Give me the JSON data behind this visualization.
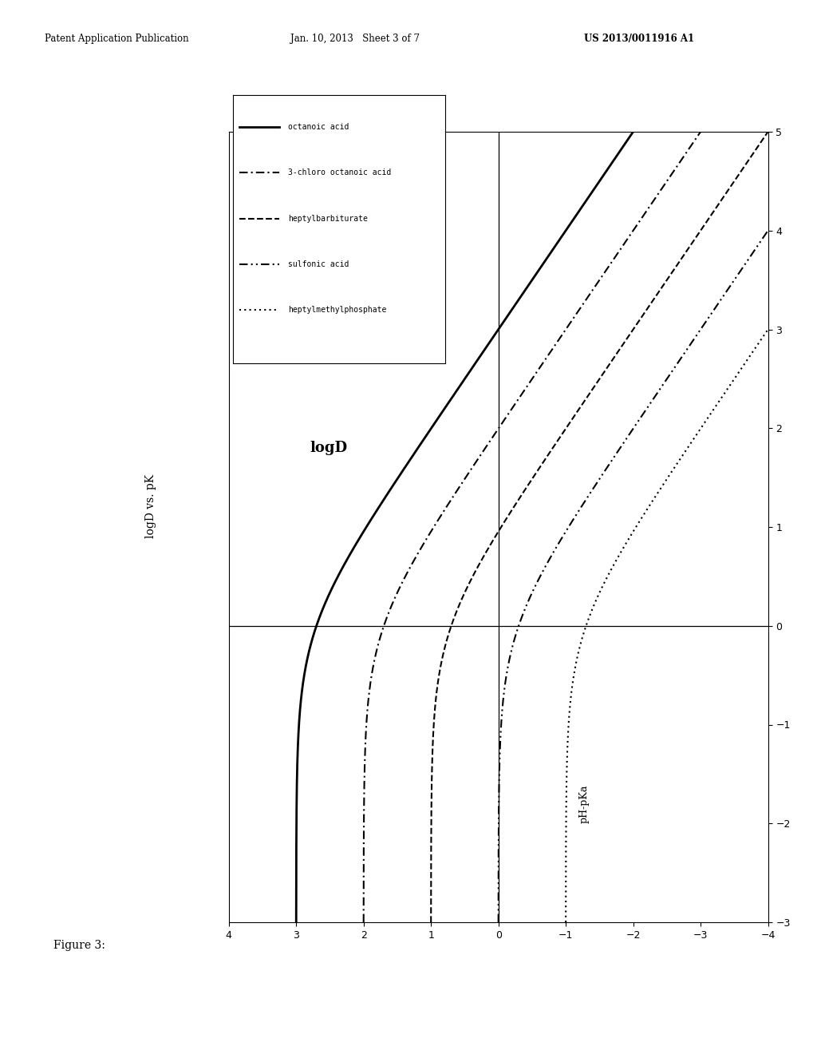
{
  "header_left": "Patent Application Publication",
  "header_mid": "Jan. 10, 2013   Sheet 3 of 7",
  "header_right": "US 2013/0011916 A1",
  "figure_label": "Figure 3:",
  "rotated_ylabel": "logD vs. pK",
  "inner_label": "logD",
  "bottom_xlabel": "pH-pKa",
  "compounds": [
    {
      "name": "octanoic acid",
      "logP": 3.0,
      "style": "solid",
      "lw": 2.0
    },
    {
      "name": "3-chloro octanoic acid",
      "logP": 2.0,
      "style": "dashdot",
      "lw": 1.5
    },
    {
      "name": "heptylbarbiturate",
      "logP": 1.0,
      "style": "dashed",
      "lw": 1.5
    },
    {
      "name": "sulfonic acid",
      "logP": 0.0,
      "style": "dashdotdot",
      "lw": 1.5
    },
    {
      "name": "heptylmethylphosphate",
      "logP": -1.0,
      "style": "dotted",
      "lw": 1.5
    }
  ],
  "logD_range": [
    -4,
    4
  ],
  "pH_pKa_range": [
    -3,
    5
  ],
  "logD_ticks": [
    -4,
    -3,
    -2,
    -1,
    0,
    1,
    2,
    3,
    4
  ],
  "pH_ticks": [
    -3,
    -2,
    -1,
    0,
    1,
    2,
    3,
    4,
    5
  ],
  "bg_color": "#ffffff"
}
